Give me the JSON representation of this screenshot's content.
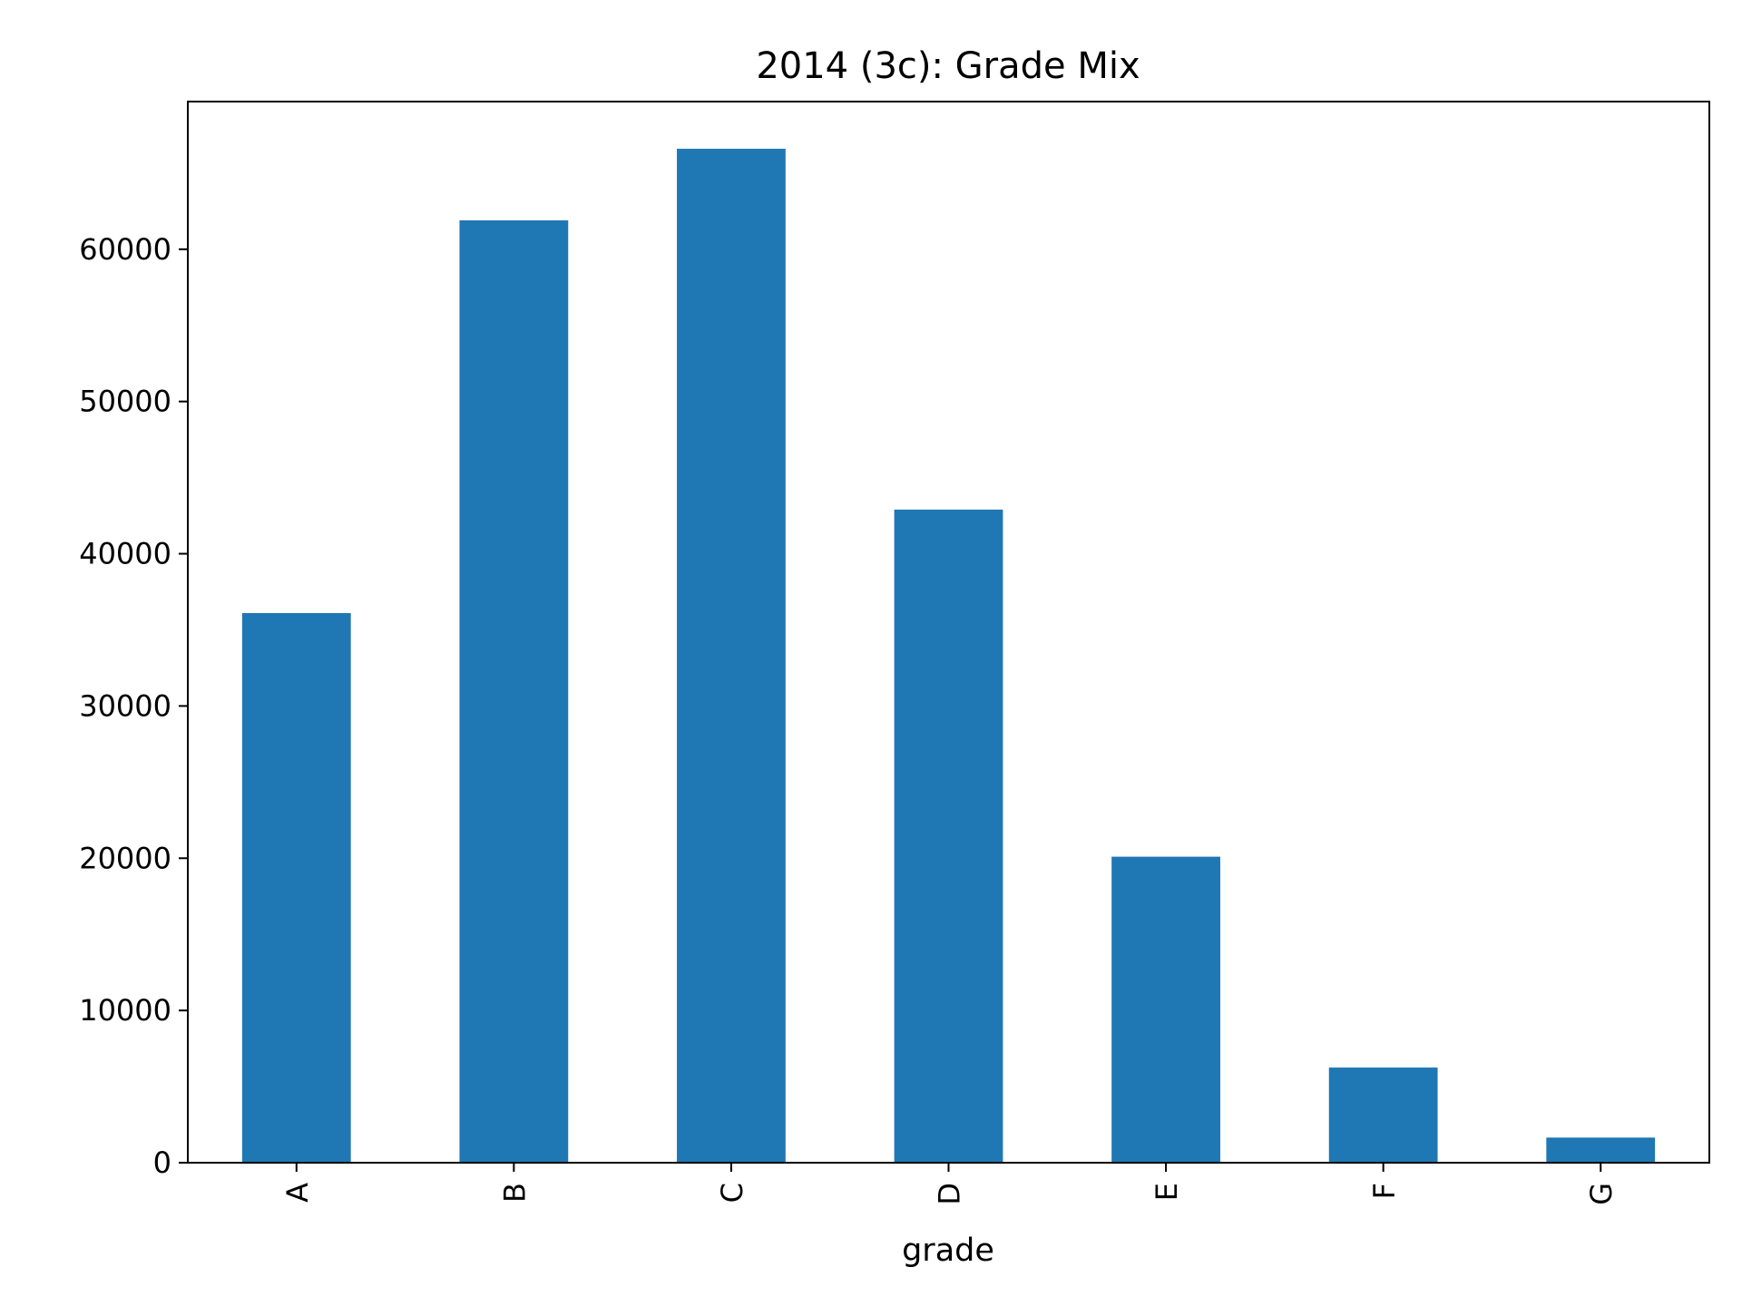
{
  "chart_data": {
    "type": "bar",
    "title": "2014 (3c): Grade Mix",
    "xlabel": "grade",
    "ylabel": "",
    "categories": [
      "A",
      "B",
      "C",
      "D",
      "E",
      "F",
      "G"
    ],
    "series": [
      {
        "values": [
          36100,
          61900,
          66600,
          42900,
          20100,
          6250,
          1650
        ]
      }
    ],
    "ylim": [
      0,
      69700
    ],
    "yticks": [
      0,
      10000,
      20000,
      30000,
      40000,
      50000,
      60000
    ],
    "grid": false,
    "legend": "none",
    "bar_color": "#1f77b4"
  }
}
